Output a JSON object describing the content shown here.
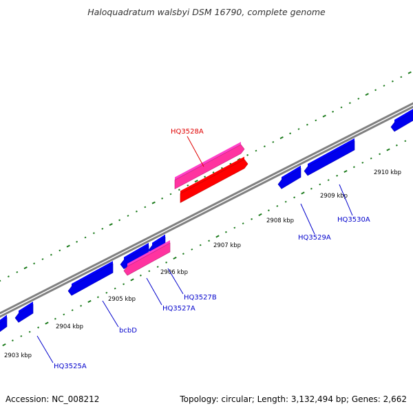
{
  "title": "Haloquadratum walsbyi DSM 16790, complete genome",
  "footer": {
    "accession": "Accession: NC_008212",
    "summary": "Topology: circular; Length: 3,132,494 bp; Genes: 2,662"
  },
  "colors": {
    "backbone": "#808080",
    "ticks": "#1a7a1a",
    "gene_forward": "#ff0000",
    "cds_forward": "#ff33a0",
    "cds_reverse": "#0000ee",
    "label_forward": "#e00000",
    "label_reverse": "#0000cc"
  },
  "scale": {
    "unit": "kbp",
    "tick_labels": [
      "2903 kbp",
      "2904 kbp",
      "2905 kbp",
      "2906 kbp",
      "2907 kbp",
      "2908 kbp",
      "2909 kbp",
      "2910 kbp"
    ]
  },
  "genes": [
    {
      "label": "HQ3525A",
      "strand": "reverse"
    },
    {
      "label": "bcbD",
      "strand": "reverse"
    },
    {
      "label": "HQ3527A",
      "strand": "reverse"
    },
    {
      "label": "HQ3527B",
      "strand": "reverse"
    },
    {
      "label": "HQ3528A",
      "strand": "forward"
    },
    {
      "label": "HQ3529A",
      "strand": "reverse"
    },
    {
      "label": "HQ3530A",
      "strand": "reverse"
    }
  ]
}
